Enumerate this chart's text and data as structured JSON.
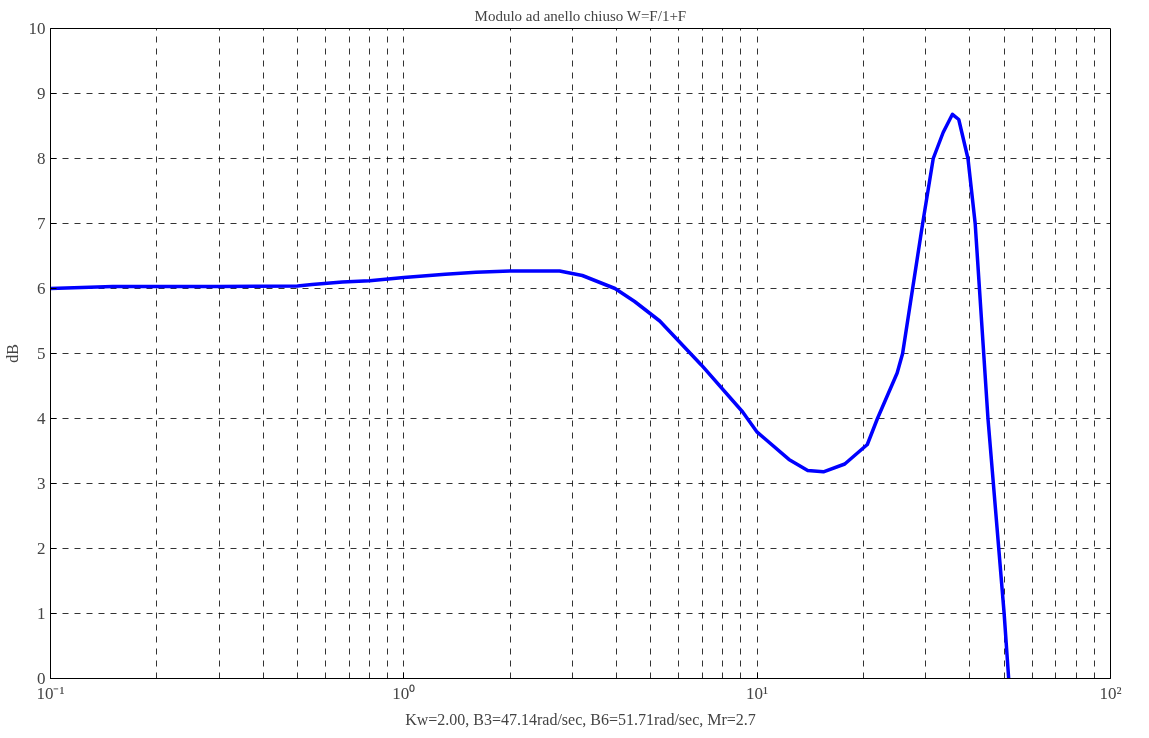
{
  "chart_data": {
    "type": "line",
    "title": "Modulo ad anello chiuso W=F/1+F",
    "xlabel": "Kw=2.00, B3=47.14rad/sec, B6=51.71rad/sec, Mr=2.7",
    "ylabel": "dB",
    "log": "x",
    "grid": true,
    "marker": "none",
    "line_style": "solid",
    "xlim": [
      0.1,
      100
    ],
    "ylim": [
      0,
      10
    ],
    "xticks": [
      {
        "value": 0.1,
        "label": "10⁻¹"
      },
      {
        "value": 1,
        "label": "10⁰"
      },
      {
        "value": 10,
        "label": "10¹"
      },
      {
        "value": 100,
        "label": "10²"
      }
    ],
    "yticks": [
      0,
      1,
      2,
      3,
      4,
      5,
      6,
      7,
      8,
      9,
      10
    ],
    "series": [
      {
        "color": "#0000ff",
        "x": [
          0.1,
          0.15,
          0.3,
          0.5,
          0.55,
          0.67,
          0.8,
          1,
          1.31,
          1.6,
          2,
          2.76,
          3.2,
          3.96,
          4.5,
          5.3,
          6.96,
          9.1,
          10,
          12.3,
          13.9,
          15.4,
          17.7,
          20.5,
          21.9,
          24.9,
          25.8,
          29.4,
          31.5,
          33.6,
          35.7,
          37.2,
          39.5,
          41.4,
          45,
          50,
          51.5
        ],
        "values": [
          6.0,
          6.03,
          6.03,
          6.04,
          6.06,
          6.1,
          6.12,
          6.17,
          6.22,
          6.25,
          6.27,
          6.27,
          6.2,
          6.0,
          5.8,
          5.5,
          4.82,
          4.1,
          3.79,
          3.37,
          3.2,
          3.18,
          3.3,
          3.6,
          4.0,
          4.7,
          5.0,
          7.0,
          8.0,
          8.4,
          8.68,
          8.6,
          8.0,
          7.0,
          4.0,
          1.0,
          0.0
        ]
      }
    ]
  }
}
